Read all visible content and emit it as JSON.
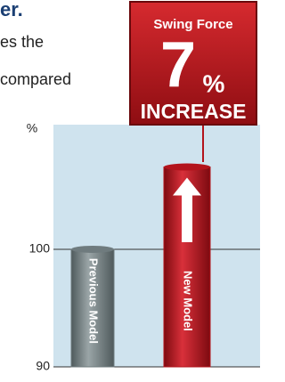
{
  "header_fragments": [
    "er.",
    "es the",
    "compared"
  ],
  "badge": {
    "title": "Swing Force",
    "number": "7",
    "unit": "%",
    "label": "INCREASE"
  },
  "chart_data": {
    "type": "bar",
    "y_label": "%",
    "categories": [
      "Previous Model",
      "New Model"
    ],
    "values": [
      100,
      107
    ],
    "colors": [
      "#6f7b7e",
      "#b3141c"
    ],
    "ylim": [
      90,
      110.6
    ],
    "yticks": [
      90,
      100
    ],
    "grid": true
  }
}
